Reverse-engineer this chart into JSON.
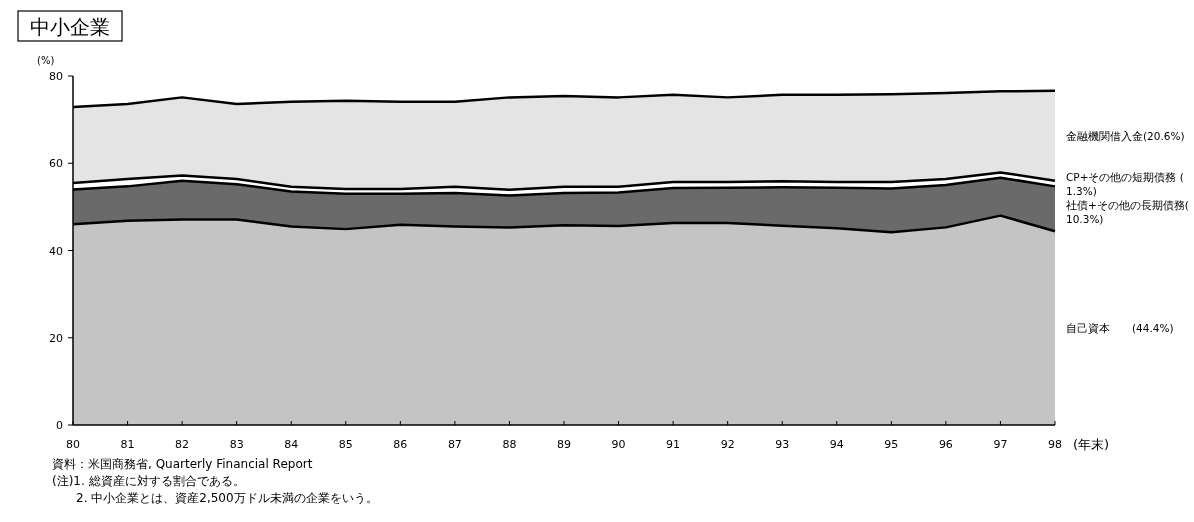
{
  "chart_data": {
    "type": "area",
    "stacked": true,
    "title": "中小企業",
    "ylabel": "(%)",
    "xlabel": "(年末)",
    "categories": [
      "80",
      "81",
      "82",
      "83",
      "84",
      "85",
      "86",
      "87",
      "88",
      "89",
      "90",
      "91",
      "92",
      "93",
      "94",
      "95",
      "96",
      "97",
      "98"
    ],
    "ylim": [
      0,
      80
    ],
    "yticks": [
      0,
      20,
      40,
      60,
      80
    ],
    "series": [
      {
        "name": "自己資本　　(44.4%)",
        "color": "#c4c4c4",
        "values": [
          46.0,
          46.8,
          47.1,
          47.1,
          45.5,
          44.9,
          45.9,
          45.5,
          45.3,
          45.8,
          45.6,
          46.3,
          46.3,
          45.7,
          45.1,
          44.2,
          45.3,
          48.0,
          44.4
        ]
      },
      {
        "name": "社債+その他の長期債務(10.3%)",
        "color": "#6a6a6a",
        "values": [
          8.0,
          7.9,
          8.9,
          8.1,
          8.0,
          8.1,
          7.1,
          7.7,
          7.3,
          7.4,
          7.7,
          8.0,
          8.1,
          8.8,
          9.3,
          10.0,
          9.7,
          8.7,
          10.3
        ]
      },
      {
        "name": "CP+その他の短期債務 (1.3%)",
        "color": "#ffffff",
        "values": [
          1.5,
          1.7,
          1.2,
          1.2,
          1.1,
          1.1,
          1.1,
          1.4,
          1.3,
          1.4,
          1.3,
          1.4,
          1.3,
          1.4,
          1.3,
          1.5,
          1.4,
          1.2,
          1.3
        ]
      },
      {
        "name": "金融機関借入金(20.6%)",
        "color": "#e4e4e4",
        "values": [
          17.4,
          17.2,
          17.9,
          17.2,
          19.5,
          20.2,
          20.0,
          19.5,
          21.2,
          20.8,
          20.5,
          20.0,
          19.4,
          19.8,
          20.0,
          20.1,
          19.7,
          18.6,
          20.6
        ]
      }
    ],
    "annotations": [
      "資料：米国商務省, Quarterly Financial Report",
      "(注)1. 総資産に対する割合である。",
      "2. 中小企業とは、資産2,500万ドル未満の企業をいう。"
    ]
  }
}
